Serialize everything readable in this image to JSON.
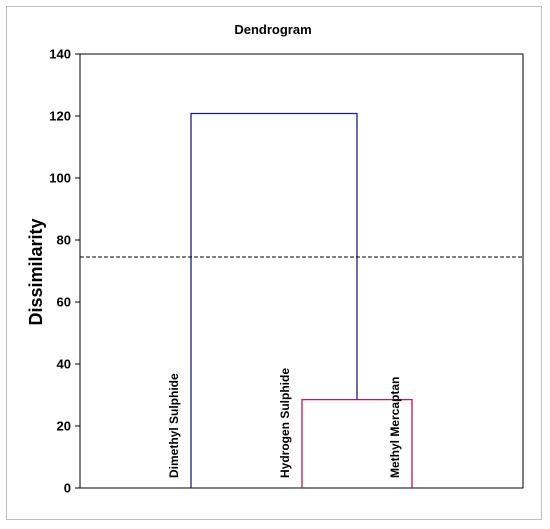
{
  "chart_data": {
    "type": "dendrogram",
    "title": "Dendrogram",
    "ylabel": "Dissimilarity",
    "ylim": [
      0,
      140
    ],
    "yticks": [
      0,
      20,
      40,
      60,
      80,
      100,
      120,
      140
    ],
    "leaves": [
      "Dimethyl Sulphide",
      "Hydrogen Sulphide",
      "Methyl Mercaptan"
    ],
    "merges": [
      {
        "left": "Hydrogen Sulphide",
        "right": "Methyl Mercaptan",
        "height": 28.5,
        "color": "#c0184a"
      },
      {
        "left": "Dimethyl Sulphide",
        "right": "cluster-1",
        "height": 120.8,
        "color": "#1f1f7a"
      }
    ],
    "cut_line": {
      "value": 74.5,
      "style": "dashed"
    },
    "grid": false,
    "legend": "none"
  }
}
